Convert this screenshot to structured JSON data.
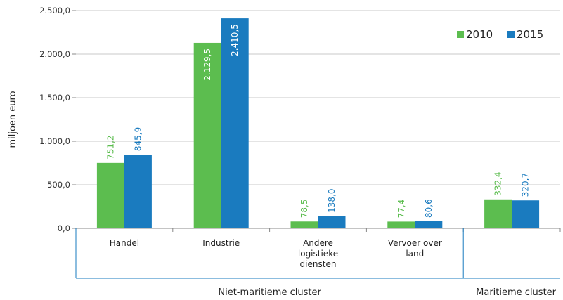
{
  "chart_data": {
    "type": "bar",
    "ylabel": "miljoen euro",
    "ylim": [
      0,
      2500
    ],
    "yticks": [
      "0,0",
      "500,0",
      "1.000,0",
      "1.500,0",
      "2.000,0",
      "2.500,0"
    ],
    "grid": true,
    "legend_position": "top-right",
    "categories": [
      {
        "label": "Handel",
        "group": 0
      },
      {
        "label": "Industrie",
        "group": 0
      },
      {
        "label": "Andere\nlogistieke\ndiensten",
        "group": 0
      },
      {
        "label": "Vervoer over\nland",
        "group": 0
      },
      {
        "label": "",
        "group": 1
      }
    ],
    "groups": [
      "Niet-maritieme cluster",
      "Maritieme cluster"
    ],
    "series": [
      {
        "name": "2010",
        "color": "#5cbd4f",
        "values": [
          751.2,
          2129.5,
          78.5,
          77.4,
          332.4
        ],
        "labels": [
          "751,2",
          "2.129,5",
          "78,5",
          "77,4",
          "332,4"
        ]
      },
      {
        "name": "2015",
        "color": "#1a7bbf",
        "values": [
          845.9,
          2410.5,
          138.0,
          80.6,
          320.7
        ],
        "labels": [
          "845,9",
          "2.410,5",
          "138,0",
          "80,6",
          "320,7"
        ]
      }
    ]
  }
}
